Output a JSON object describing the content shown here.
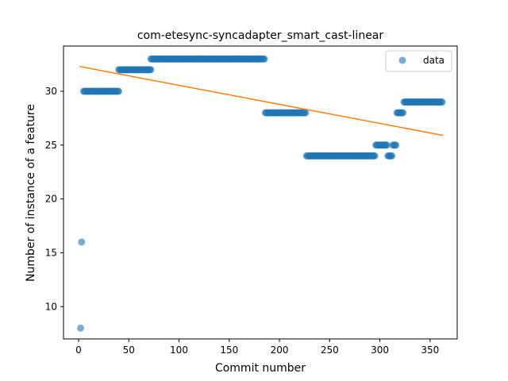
{
  "chart_data": {
    "type": "scatter",
    "title": "com-etesync-syncadapter_smart_cast-linear",
    "xlabel": "Commit number",
    "ylabel": "Number of instance of a feature",
    "xlim": [
      -15,
      377
    ],
    "ylim": [
      7,
      34.2
    ],
    "xticks": [
      0,
      50,
      100,
      150,
      200,
      250,
      300,
      350
    ],
    "yticks": [
      10,
      15,
      20,
      25,
      30
    ],
    "legend": {
      "position": "top-right",
      "entries": [
        "data"
      ]
    },
    "grid": false,
    "colors": {
      "points": "#1f77b4",
      "fit": "#ff7f0e"
    },
    "series": [
      {
        "name": "data",
        "segments": [
          {
            "x_start": 2,
            "x_end": 2,
            "y": 8
          },
          {
            "x_start": 3,
            "x_end": 3,
            "y": 16
          },
          {
            "x_start": 5,
            "x_end": 40,
            "y": 30
          },
          {
            "x_start": 40,
            "x_end": 72,
            "y": 32
          },
          {
            "x_start": 72,
            "x_end": 185,
            "y": 33
          },
          {
            "x_start": 186,
            "x_end": 226,
            "y": 28
          },
          {
            "x_start": 227,
            "x_end": 295,
            "y": 24
          },
          {
            "x_start": 296,
            "x_end": 307,
            "y": 25
          },
          {
            "x_start": 308,
            "x_end": 312,
            "y": 24
          },
          {
            "x_start": 313,
            "x_end": 316,
            "y": 25
          },
          {
            "x_start": 317,
            "x_end": 323,
            "y": 28
          },
          {
            "x_start": 324,
            "x_end": 362,
            "y": 29
          }
        ]
      }
    ],
    "fit_line": {
      "x": [
        1,
        363
      ],
      "y": [
        32.3,
        25.9
      ]
    }
  }
}
